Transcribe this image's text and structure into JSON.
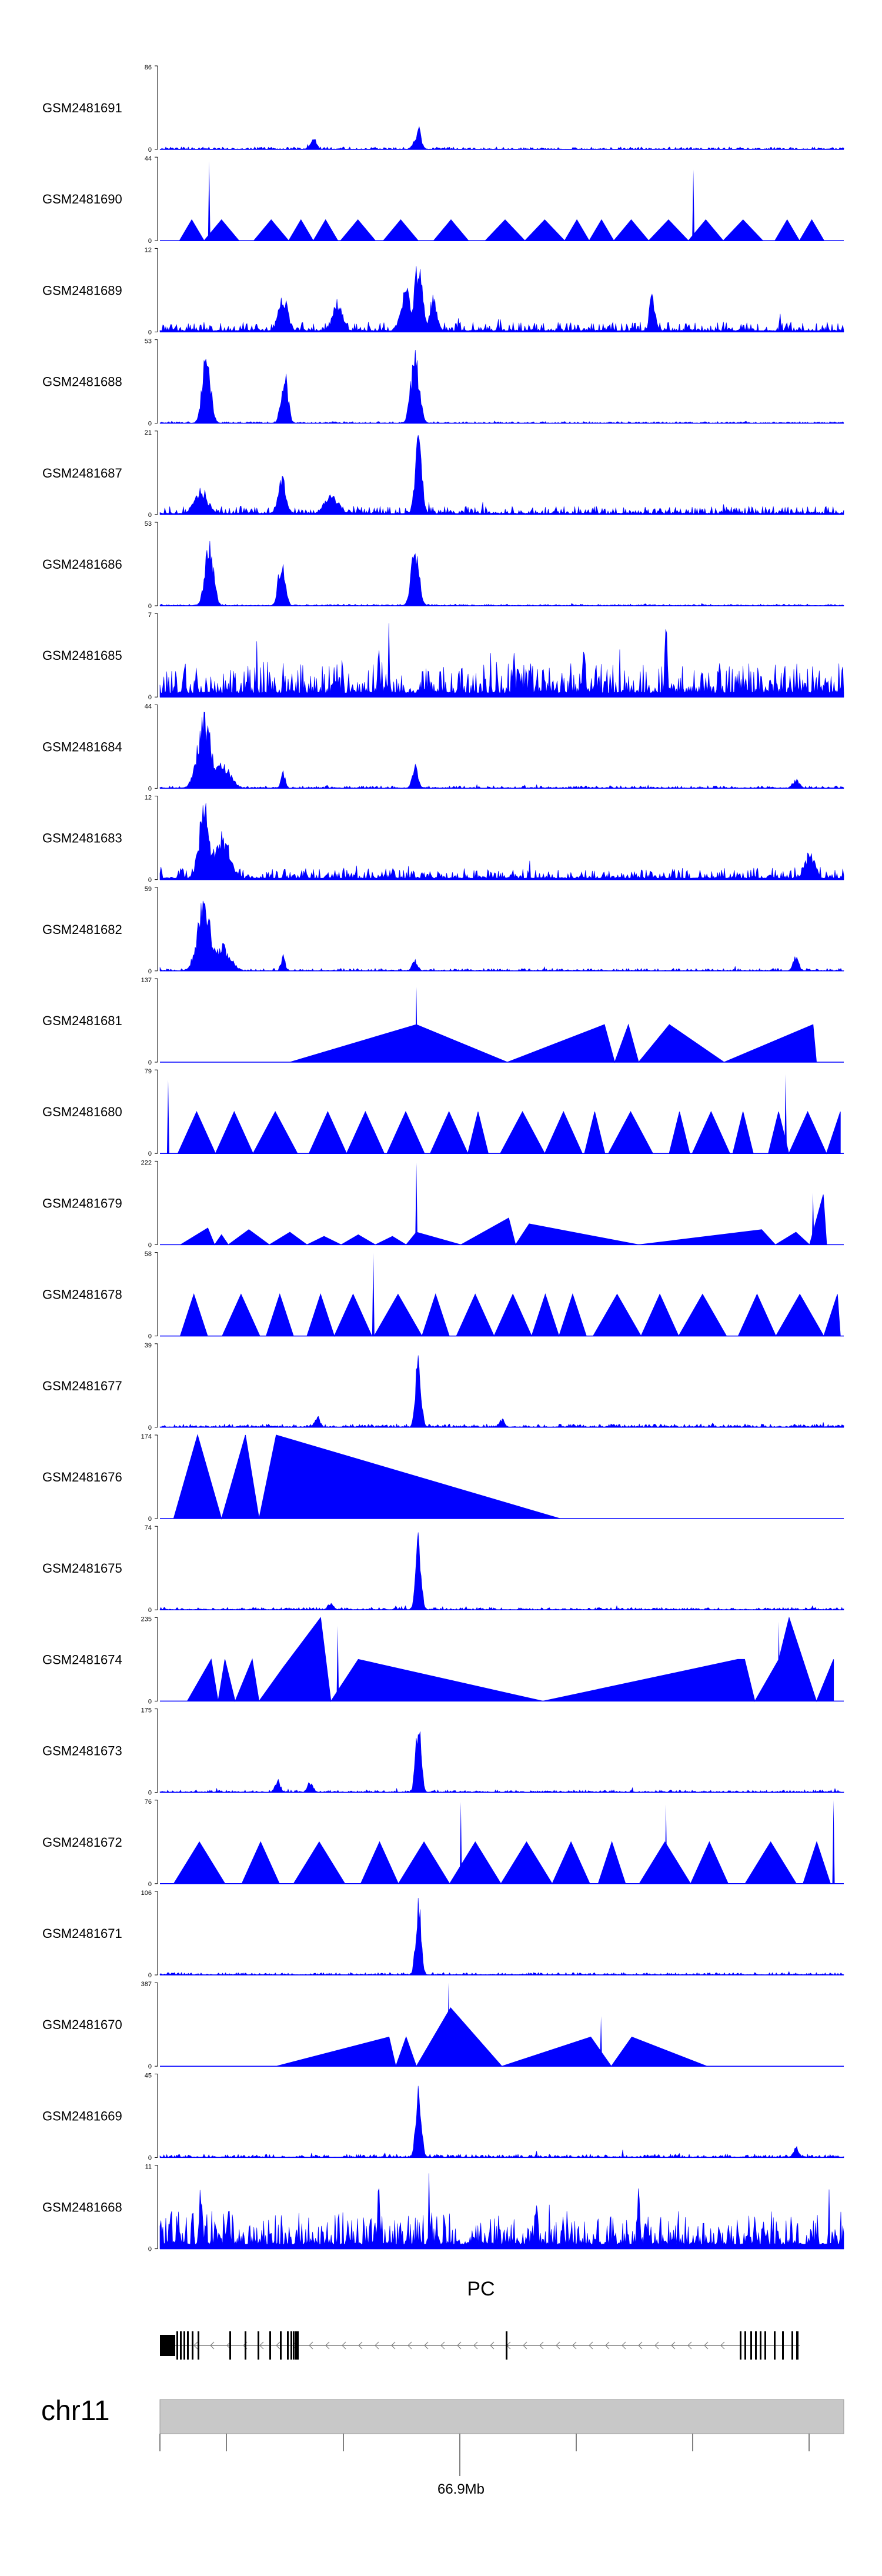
{
  "chart_data": {
    "type": "genome-browser-coverage",
    "chromosome": "chr11",
    "locus_tick_label": "66.9Mb",
    "gene": {
      "name": "PC",
      "strand": "-"
    },
    "colors": {
      "signal": "#0000FF",
      "axis": "#000000",
      "ideogram": "#c8c8c8",
      "gene": "#000000",
      "intron": "#7f7f7f"
    },
    "tracks": [
      {
        "name": "GSM2481691",
        "ymax": "86",
        "ymin": "0",
        "style": "peaks",
        "noise": 0.03,
        "peaks": [
          [
            0.378,
            0.3,
            0.004
          ],
          [
            0.372,
            0.1,
            0.004
          ],
          [
            0.225,
            0.18,
            0.004
          ]
        ]
      },
      {
        "name": "GSM2481690",
        "ymax": "44",
        "ymin": "0",
        "style": "triangles",
        "base": 0.25,
        "spikes": [
          [
            0.072,
            0.95
          ],
          [
            0.78,
            0.85
          ]
        ],
        "widths": [
          0.036,
          0.051,
          0.058
        ]
      },
      {
        "name": "GSM2481689",
        "ymax": "12",
        "ymin": "0",
        "style": "peaks",
        "noise": 0.12,
        "peaks": [
          [
            0.378,
            0.98,
            0.006
          ],
          [
            0.18,
            0.5,
            0.007
          ],
          [
            0.36,
            0.55,
            0.008
          ],
          [
            0.4,
            0.45,
            0.006
          ],
          [
            0.26,
            0.4,
            0.008
          ],
          [
            0.72,
            0.55,
            0.004
          ]
        ]
      },
      {
        "name": "GSM2481688",
        "ymax": "53",
        "ymin": "0",
        "style": "peaks",
        "noise": 0.02,
        "peaks": [
          [
            0.068,
            0.95,
            0.006
          ],
          [
            0.182,
            0.68,
            0.005
          ],
          [
            0.373,
            0.96,
            0.006
          ]
        ]
      },
      {
        "name": "GSM2481687",
        "ymax": "21",
        "ymin": "0",
        "style": "peaks",
        "noise": 0.1,
        "peaks": [
          [
            0.378,
            1.0,
            0.005
          ],
          [
            0.178,
            0.5,
            0.006
          ],
          [
            0.06,
            0.35,
            0.01
          ],
          [
            0.25,
            0.3,
            0.01
          ]
        ]
      },
      {
        "name": "GSM2481686",
        "ymax": "53",
        "ymin": "0",
        "style": "peaks",
        "noise": 0.02,
        "peaks": [
          [
            0.072,
            0.98,
            0.006
          ],
          [
            0.178,
            0.62,
            0.005
          ],
          [
            0.373,
            0.72,
            0.006
          ]
        ]
      },
      {
        "name": "GSM2481685",
        "ymax": "7",
        "ymin": "0",
        "style": "peaks",
        "noise": 0.42,
        "peaks": [
          [
            0.74,
            0.95,
            0.002
          ],
          [
            0.62,
            0.75,
            0.002
          ],
          [
            0.32,
            0.7,
            0.002
          ]
        ]
      },
      {
        "name": "GSM2481684",
        "ymax": "44",
        "ymin": "0",
        "style": "peaks",
        "noise": 0.03,
        "peaks": [
          [
            0.065,
            0.95,
            0.01
          ],
          [
            0.09,
            0.35,
            0.012
          ],
          [
            0.18,
            0.22,
            0.003
          ],
          [
            0.373,
            0.35,
            0.004
          ],
          [
            0.93,
            0.12,
            0.005
          ]
        ]
      },
      {
        "name": "GSM2481683",
        "ymax": "12",
        "ymin": "0",
        "style": "peaks",
        "noise": 0.14,
        "peaks": [
          [
            0.065,
            0.98,
            0.008
          ],
          [
            0.09,
            0.6,
            0.012
          ],
          [
            0.95,
            0.35,
            0.008
          ]
        ]
      },
      {
        "name": "GSM2481682",
        "ymax": "59",
        "ymin": "0",
        "style": "peaks",
        "noise": 0.03,
        "peaks": [
          [
            0.065,
            0.92,
            0.01
          ],
          [
            0.09,
            0.35,
            0.012
          ],
          [
            0.18,
            0.2,
            0.003
          ],
          [
            0.373,
            0.15,
            0.004
          ],
          [
            0.93,
            0.2,
            0.004
          ]
        ]
      },
      {
        "name": "GSM2481681",
        "ymax": "137",
        "ymin": "0",
        "style": "ramps",
        "points": [
          [
            0.19,
            0
          ],
          [
            0.375,
            0.45
          ],
          [
            0.508,
            0
          ],
          [
            0.65,
            0.45
          ],
          [
            0.665,
            0
          ],
          [
            0.685,
            0.45
          ],
          [
            0.7,
            0
          ],
          [
            0.745,
            0.45
          ],
          [
            0.825,
            0
          ],
          [
            0.955,
            0.45
          ],
          [
            0.96,
            0
          ]
        ],
        "spikes": [
          [
            0.375,
            0.9
          ]
        ]
      },
      {
        "name": "GSM2481680",
        "ymax": "79",
        "ymin": "0",
        "style": "triangles",
        "base": 0.5,
        "spikes": [
          [
            0.012,
            0.88
          ],
          [
            0.915,
            0.95
          ]
        ],
        "widths": [
          0.03,
          0.055,
          0.065
        ]
      },
      {
        "name": "GSM2481679",
        "ymax": "222",
        "ymin": "0",
        "style": "ramps",
        "points": [
          [
            0.03,
            0
          ],
          [
            0.07,
            0.2
          ],
          [
            0.08,
            0
          ],
          [
            0.09,
            0.12
          ],
          [
            0.1,
            0
          ],
          [
            0.13,
            0.18
          ],
          [
            0.16,
            0
          ],
          [
            0.19,
            0.15
          ],
          [
            0.215,
            0
          ],
          [
            0.24,
            0.1
          ],
          [
            0.265,
            0
          ],
          [
            0.29,
            0.12
          ],
          [
            0.315,
            0
          ],
          [
            0.34,
            0.1
          ],
          [
            0.36,
            0
          ],
          [
            0.375,
            0.15
          ],
          [
            0.44,
            0
          ],
          [
            0.51,
            0.32
          ],
          [
            0.52,
            0
          ],
          [
            0.54,
            0.25
          ],
          [
            0.7,
            0
          ],
          [
            0.88,
            0.18
          ],
          [
            0.9,
            0
          ],
          [
            0.93,
            0.15
          ],
          [
            0.95,
            0
          ],
          [
            0.97,
            0.6
          ],
          [
            0.975,
            0
          ]
        ],
        "spikes": [
          [
            0.375,
            0.98
          ],
          [
            0.955,
            0.62
          ]
        ]
      },
      {
        "name": "GSM2481678",
        "ymax": "58",
        "ymin": "0",
        "style": "triangles",
        "base": 0.5,
        "spikes": [
          [
            0.312,
            1.0
          ]
        ],
        "widths": [
          0.04,
          0.055,
          0.07
        ]
      },
      {
        "name": "GSM2481677",
        "ymax": "39",
        "ymin": "0",
        "style": "peaks",
        "noise": 0.04,
        "peaks": [
          [
            0.378,
            0.98,
            0.004
          ],
          [
            0.23,
            0.15,
            0.004
          ],
          [
            0.5,
            0.12,
            0.004
          ]
        ]
      },
      {
        "name": "GSM2481676",
        "ymax": "174",
        "ymin": "0",
        "style": "ramps",
        "points": [
          [
            0.02,
            0
          ],
          [
            0.055,
            1.0
          ],
          [
            0.09,
            0
          ],
          [
            0.125,
            1.0
          ],
          [
            0.145,
            0
          ],
          [
            0.17,
            1.0
          ],
          [
            0.585,
            0
          ]
        ],
        "spikes": []
      },
      {
        "name": "GSM2481675",
        "ymax": "74",
        "ymin": "0",
        "style": "peaks",
        "noise": 0.03,
        "peaks": [
          [
            0.378,
            0.96,
            0.004
          ],
          [
            0.25,
            0.1,
            0.004
          ]
        ]
      },
      {
        "name": "GSM2481674",
        "ymax": "235",
        "ymin": "0",
        "style": "ramps",
        "points": [
          [
            0.04,
            0
          ],
          [
            0.075,
            0.5
          ],
          [
            0.085,
            0
          ],
          [
            0.095,
            0.5
          ],
          [
            0.11,
            0
          ],
          [
            0.135,
            0.5
          ],
          [
            0.145,
            0
          ],
          [
            0.18,
            0.4
          ],
          [
            0.235,
            1.0
          ],
          [
            0.25,
            0
          ],
          [
            0.29,
            0.5
          ],
          [
            0.56,
            0
          ],
          [
            0.845,
            0.5
          ],
          [
            0.855,
            0.5
          ],
          [
            0.87,
            0
          ],
          [
            0.905,
            0.5
          ],
          [
            0.92,
            1.0
          ],
          [
            0.96,
            0
          ],
          [
            0.985,
            0.5
          ]
        ],
        "spikes": [
          [
            0.26,
            0.9
          ],
          [
            0.905,
            0.95
          ]
        ]
      },
      {
        "name": "GSM2481673",
        "ymax": "175",
        "ymin": "0",
        "style": "peaks",
        "noise": 0.03,
        "peaks": [
          [
            0.378,
            0.96,
            0.004
          ],
          [
            0.172,
            0.18,
            0.004
          ],
          [
            0.22,
            0.15,
            0.004
          ]
        ]
      },
      {
        "name": "GSM2481672",
        "ymax": "76",
        "ymin": "0",
        "style": "triangles",
        "base": 0.5,
        "spikes": [
          [
            0.44,
            0.98
          ],
          [
            0.74,
            0.95
          ],
          [
            0.985,
            1.0
          ]
        ],
        "widths": [
          0.04,
          0.055,
          0.075
        ]
      },
      {
        "name": "GSM2481671",
        "ymax": "106",
        "ymin": "0",
        "style": "peaks",
        "noise": 0.03,
        "peaks": [
          [
            0.378,
            0.97,
            0.004
          ]
        ]
      },
      {
        "name": "GSM2481670",
        "ymax": "387",
        "ymin": "0",
        "style": "ramps",
        "points": [
          [
            0.17,
            0
          ],
          [
            0.335,
            0.35
          ],
          [
            0.345,
            0
          ],
          [
            0.36,
            0.35
          ],
          [
            0.375,
            0
          ],
          [
            0.4,
            0.35
          ],
          [
            0.425,
            0.7
          ],
          [
            0.5,
            0
          ],
          [
            0.63,
            0.35
          ],
          [
            0.66,
            0
          ],
          [
            0.69,
            0.35
          ],
          [
            0.8,
            0
          ]
        ],
        "spikes": [
          [
            0.422,
            1.0
          ],
          [
            0.645,
            0.6
          ]
        ]
      },
      {
        "name": "GSM2481669",
        "ymax": "45",
        "ymin": "0",
        "style": "peaks",
        "noise": 0.04,
        "peaks": [
          [
            0.378,
            0.96,
            0.004
          ],
          [
            0.93,
            0.15,
            0.004
          ]
        ]
      },
      {
        "name": "GSM2481668",
        "ymax": "11",
        "ymin": "0",
        "style": "peaks",
        "noise": 0.45,
        "peaks": [
          [
            0.06,
            0.95,
            0.002
          ],
          [
            0.1,
            0.7,
            0.002
          ],
          [
            0.32,
            0.8,
            0.002
          ],
          [
            0.55,
            0.75,
            0.002
          ],
          [
            0.7,
            0.8,
            0.002
          ]
        ]
      }
    ]
  }
}
